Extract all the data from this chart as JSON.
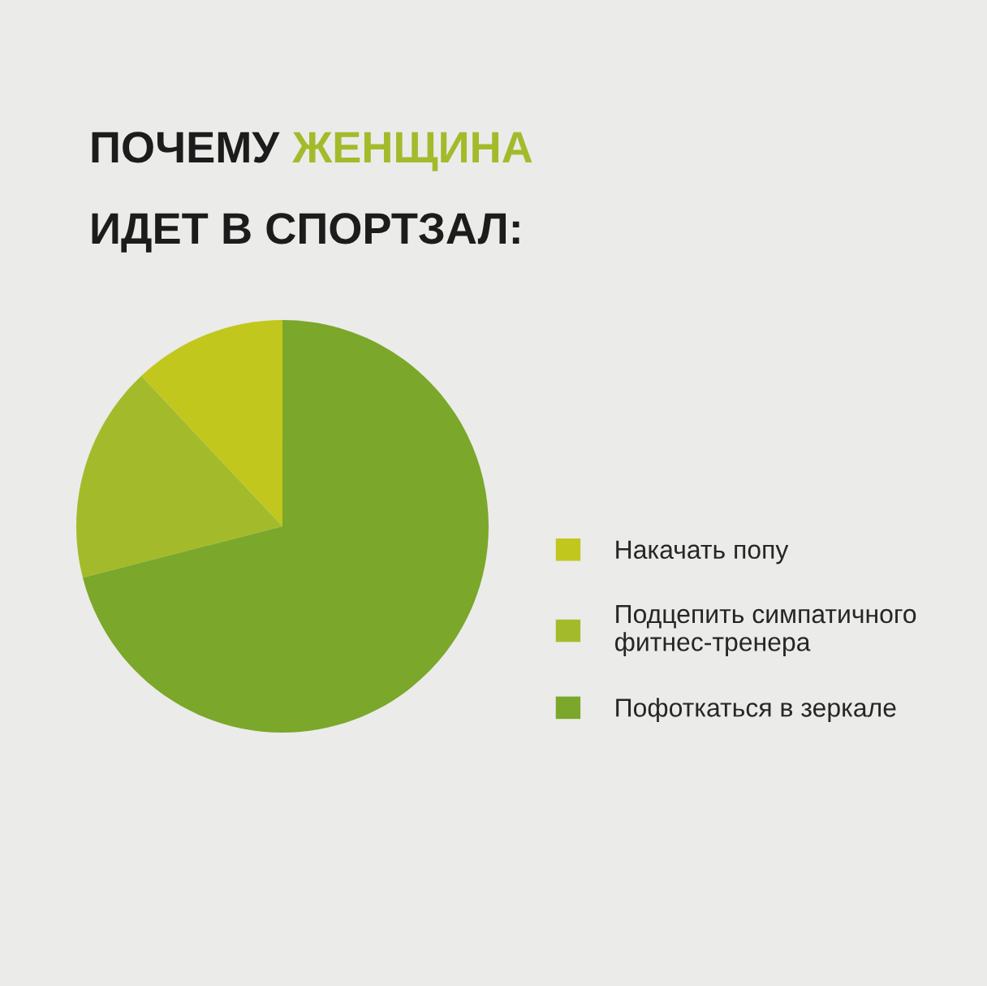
{
  "chart_data": {
    "type": "pie",
    "title": "ПОЧЕМУ ЖЕНЩИНА\nИДЕТ В СПОРТЗАЛ:",
    "categories": [
      "Накачать попу",
      "Подцепить симпатичного\nфитнес-тренера",
      "Пофоткаться в зеркале"
    ],
    "values": [
      12,
      17,
      71
    ],
    "colors": [
      "#c2c71e",
      "#a3bb2b",
      "#7ba72a"
    ],
    "legend": "right"
  }
}
